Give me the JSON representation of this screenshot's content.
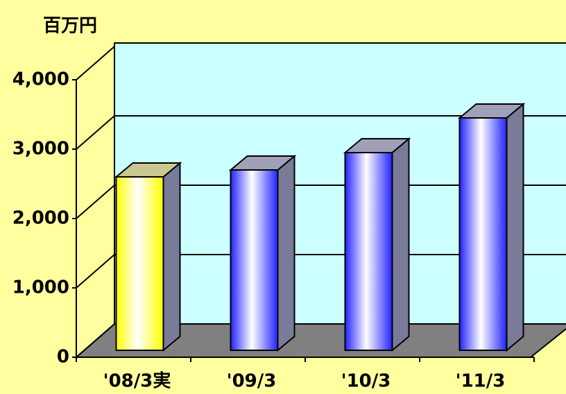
{
  "chart_data": {
    "type": "bar3d",
    "y_label": "百万円",
    "categories": [
      "'08/3実",
      "'09/3",
      "'10/3",
      "'11/3"
    ],
    "values": [
      2500,
      2600,
      2850,
      3350
    ],
    "colors": [
      "#ffff00",
      "#2222ff",
      "#2222ff",
      "#2222ff"
    ],
    "ylim": [
      0,
      4000
    ],
    "yticks": [
      0,
      {
        "value": 1000,
        "label": "1,000"
      },
      {
        "value": 2000,
        "label": "2,000"
      },
      {
        "value": 3000,
        "label": "3,000"
      },
      {
        "value": 4000,
        "label": "4,000"
      }
    ],
    "grid": true
  }
}
